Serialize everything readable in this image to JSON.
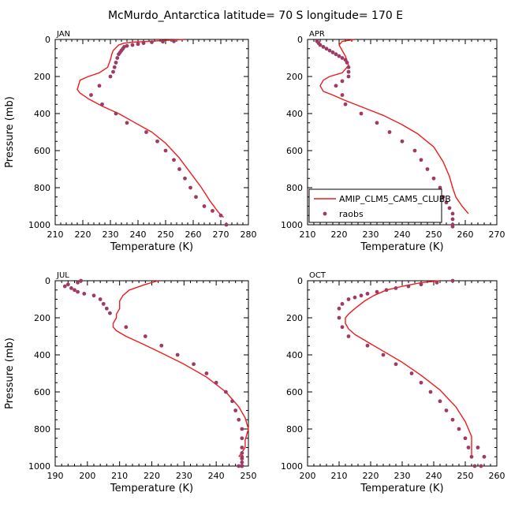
{
  "figure": {
    "title": "McMurdo_Antarctica  latitude= 70 S longitude= 170 E"
  },
  "colors": {
    "model": "#ee1c1c",
    "obs": "#9e3a64",
    "axis": "#000000"
  },
  "chart_data": [
    {
      "type": "line",
      "panel_label": "JAN",
      "xlabel": "Temperature (K)",
      "ylabel": "Pressure (mb)",
      "xlim": [
        210,
        280
      ],
      "xticks": [
        210,
        220,
        230,
        240,
        250,
        260,
        270,
        280
      ],
      "ylim": [
        0,
        1000
      ],
      "yticks": [
        0,
        200,
        400,
        600,
        800,
        1000
      ],
      "y_inverted": true,
      "series": [
        {
          "name": "AMIP_CLM5_CAM5_CLUBB",
          "kind": "line",
          "x": [
            257,
            250,
            244,
            238,
            235,
            233,
            232,
            231,
            230.5,
            230,
            229,
            226,
            222,
            219,
            218,
            219,
            222,
            227,
            233,
            239,
            245,
            250,
            255,
            259,
            263,
            266,
            269,
            271
          ],
          "y": [
            0,
            5,
            10,
            15,
            20,
            30,
            45,
            60,
            80,
            110,
            150,
            180,
            200,
            220,
            270,
            290,
            320,
            360,
            400,
            450,
            500,
            560,
            640,
            720,
            800,
            870,
            930,
            960
          ]
        },
        {
          "name": "raobs",
          "kind": "points",
          "x": [
            253,
            249,
            245,
            242,
            240,
            238,
            236,
            235,
            234.5,
            234,
            233.5,
            233,
            232.5,
            232,
            231.5,
            231,
            230,
            226,
            223,
            227,
            232,
            236,
            243,
            247,
            250,
            253,
            255,
            257,
            259,
            261,
            264,
            267,
            270,
            272
          ],
          "y": [
            10,
            12,
            15,
            20,
            25,
            30,
            35,
            40,
            50,
            60,
            70,
            80,
            100,
            125,
            150,
            175,
            200,
            250,
            300,
            350,
            400,
            450,
            500,
            550,
            600,
            650,
            700,
            750,
            800,
            850,
            900,
            925,
            950,
            1000
          ]
        }
      ]
    },
    {
      "type": "line",
      "panel_label": "APR",
      "xlabel": "Temperature (K)",
      "ylabel": "",
      "xlim": [
        210,
        270
      ],
      "xticks": [
        210,
        220,
        230,
        240,
        250,
        260,
        270
      ],
      "ylim": [
        0,
        1000
      ],
      "yticks": [
        0,
        200,
        400,
        600,
        800,
        1000
      ],
      "y_inverted": true,
      "legend": {
        "placement": "bottom-right",
        "entries": [
          "AMIP_CLM5_CAM5_CLUBB",
          "raobs"
        ]
      },
      "series": [
        {
          "name": "AMIP_CLM5_CAM5_CLUBB",
          "kind": "line",
          "x": [
            225,
            221,
            220,
            221,
            222,
            223,
            221,
            217,
            215,
            214,
            215,
            218,
            222,
            228,
            234,
            240,
            245,
            250,
            253,
            255,
            256,
            257,
            259,
            261
          ],
          "y": [
            0,
            10,
            30,
            60,
            90,
            140,
            180,
            200,
            220,
            250,
            280,
            300,
            330,
            370,
            410,
            460,
            510,
            580,
            660,
            740,
            800,
            850,
            900,
            940
          ]
        },
        {
          "name": "raobs",
          "kind": "points",
          "x": [
            213,
            213.5,
            214,
            215,
            216,
            217,
            218,
            219,
            220,
            221,
            222,
            222.5,
            223,
            223,
            223,
            221,
            219,
            221,
            222,
            227,
            232,
            236,
            240,
            244,
            246,
            248,
            250,
            252,
            253,
            254,
            255,
            256,
            256,
            256,
            256
          ],
          "y": [
            10,
            20,
            30,
            40,
            50,
            60,
            70,
            80,
            90,
            100,
            110,
            125,
            150,
            175,
            200,
            225,
            250,
            300,
            350,
            400,
            450,
            500,
            550,
            600,
            650,
            700,
            750,
            800,
            850,
            880,
            910,
            940,
            970,
            1000,
            1010
          ]
        }
      ]
    },
    {
      "type": "line",
      "panel_label": "JUL",
      "xlabel": "Temperature (K)",
      "ylabel": "Pressure (mb)",
      "xlim": [
        190,
        250
      ],
      "xticks": [
        190,
        200,
        210,
        220,
        230,
        240,
        250
      ],
      "ylim": [
        0,
        1000
      ],
      "yticks": [
        0,
        200,
        400,
        600,
        800,
        1000
      ],
      "y_inverted": true,
      "series": [
        {
          "name": "AMIP_CLM5_CAM5_CLUBB",
          "kind": "line",
          "x": [
            222,
            218,
            213,
            211,
            210,
            210,
            209,
            209,
            208,
            208,
            209,
            212,
            217,
            223,
            230,
            237,
            243,
            247,
            249,
            250,
            249,
            249,
            247
          ],
          "y": [
            0,
            20,
            50,
            80,
            110,
            150,
            180,
            200,
            230,
            250,
            270,
            300,
            340,
            390,
            450,
            520,
            600,
            680,
            740,
            800,
            860,
            900,
            950
          ]
        },
        {
          "name": "raobs",
          "kind": "points",
          "x": [
            198,
            197,
            194,
            193,
            195,
            196,
            197,
            199,
            202,
            204,
            205,
            206,
            207,
            212,
            218,
            223,
            228,
            233,
            237,
            240,
            243,
            245,
            246,
            247,
            248,
            248,
            248,
            248,
            248,
            248,
            248,
            248,
            248,
            248,
            247
          ],
          "y": [
            0,
            10,
            20,
            30,
            40,
            50,
            60,
            70,
            80,
            100,
            125,
            150,
            175,
            250,
            300,
            350,
            400,
            450,
            500,
            550,
            600,
            650,
            700,
            750,
            800,
            850,
            900,
            930,
            950,
            960,
            980,
            1000,
            1000,
            1000,
            1000
          ]
        }
      ]
    },
    {
      "type": "line",
      "panel_label": "OCT",
      "xlabel": "Temperature (K)",
      "ylabel": "",
      "xlim": [
        200,
        260
      ],
      "xticks": [
        200,
        210,
        220,
        230,
        240,
        250,
        260
      ],
      "ylim": [
        0,
        1000
      ],
      "yticks": [
        0,
        200,
        400,
        600,
        800,
        1000
      ],
      "y_inverted": true,
      "series": [
        {
          "name": "AMIP_CLM5_CAM5_CLUBB",
          "kind": "line",
          "x": [
            242,
            236,
            230,
            225,
            221,
            218,
            215,
            213,
            212,
            212,
            213,
            215,
            219,
            224,
            230,
            236,
            242,
            247,
            250,
            252,
            252,
            252
          ],
          "y": [
            0,
            10,
            30,
            50,
            80,
            110,
            150,
            180,
            200,
            230,
            260,
            290,
            330,
            380,
            440,
            510,
            590,
            680,
            760,
            840,
            900,
            940
          ]
        },
        {
          "name": "raobs",
          "kind": "points",
          "x": [
            246,
            241,
            236,
            232,
            228,
            225,
            222,
            219,
            217,
            215,
            213,
            211,
            210,
            210,
            211,
            213,
            219,
            224,
            228,
            233,
            236,
            239,
            242,
            244,
            246,
            248,
            250,
            251,
            252,
            253,
            255,
            256,
            254
          ],
          "y": [
            0,
            10,
            20,
            30,
            40,
            50,
            60,
            70,
            80,
            90,
            100,
            125,
            150,
            200,
            250,
            300,
            350,
            400,
            450,
            500,
            550,
            600,
            650,
            700,
            750,
            800,
            850,
            900,
            950,
            1000,
            1000,
            950,
            900
          ]
        }
      ]
    }
  ]
}
